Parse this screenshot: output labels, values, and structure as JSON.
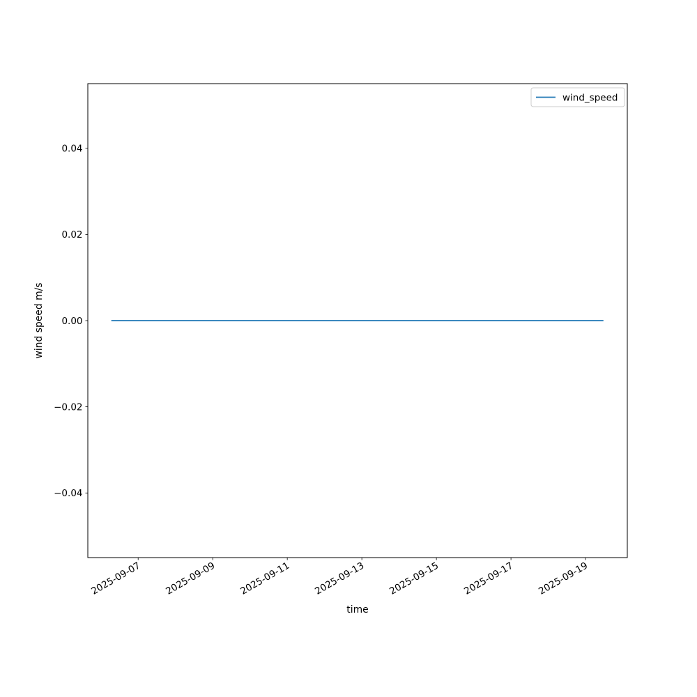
{
  "figure": {
    "background": "#ffffff"
  },
  "chart_data": {
    "type": "line",
    "title": "",
    "xlabel": "time",
    "ylabel": "wind speed m/s",
    "grid": false,
    "x_axis": {
      "tick_labels": [
        "2025-09-07",
        "2025-09-09",
        "2025-09-11",
        "2025-09-13",
        "2025-09-15",
        "2025-09-17",
        "2025-09-19"
      ],
      "tick_values": [
        0,
        2,
        4,
        6,
        8,
        10,
        12
      ],
      "lim": [
        -1.35,
        13.12
      ],
      "tick_label_rotation_deg": 30,
      "unit": "days offset from 2025-09-07"
    },
    "y_axis": {
      "tick_labels": [
        "−0.04",
        "−0.02",
        "0.00",
        "0.02",
        "0.04"
      ],
      "tick_values": [
        -0.04,
        -0.02,
        0.0,
        0.02,
        0.04
      ],
      "lim": [
        -0.055,
        0.055
      ]
    },
    "series": [
      {
        "name": "wind_speed",
        "color": "#1f77b4",
        "x": [
          -0.72,
          12.48
        ],
        "y": [
          0.0,
          0.0
        ]
      }
    ],
    "legend": {
      "position": "upper right",
      "entries": [
        {
          "label": "wind_speed",
          "color": "#1f77b4"
        }
      ]
    },
    "colors": {
      "spine": "#000000",
      "tick": "#000000",
      "text": "#000000",
      "legend_border": "#cccccc",
      "legend_background": "#ffffff",
      "plot_background": "#ffffff"
    }
  }
}
